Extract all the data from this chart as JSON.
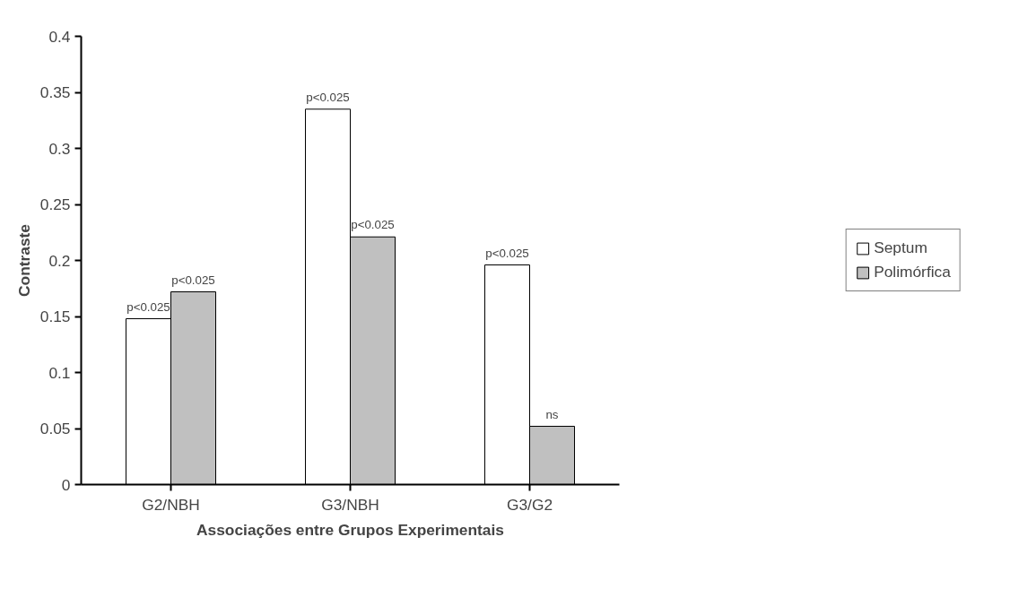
{
  "chart_data": {
    "type": "bar",
    "xlabel": "Associações entre Grupos Experimentais",
    "ylabel": "Contraste",
    "categories": [
      "G2/NBH",
      "G3/NBH",
      "G3/G2"
    ],
    "series": [
      {
        "name": "Septum",
        "color": "#ffffff",
        "values": [
          0.148,
          0.335,
          0.196
        ],
        "value_labels": [
          "p<0.025",
          "p<0.025",
          "p<0.025"
        ]
      },
      {
        "name": "Polimórfica",
        "color": "#c0c0c0",
        "values": [
          0.172,
          0.221,
          0.052
        ],
        "value_labels": [
          "p<0.025",
          "p<0.025",
          "ns"
        ]
      }
    ],
    "ylim": [
      0,
      0.4
    ],
    "yticks": [
      0,
      0.05,
      0.1,
      0.15,
      0.2,
      0.25,
      0.3,
      0.35,
      0.4
    ],
    "grid": false,
    "legend": "right"
  }
}
